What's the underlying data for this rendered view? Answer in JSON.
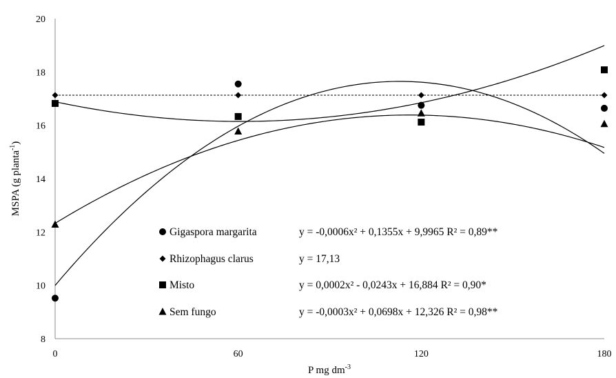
{
  "chart_data": {
    "type": "scatter",
    "xlabel": "P mg dm",
    "xlabel_sup": "-3",
    "ylabel": "MSPA (g planta",
    "ylabel_sup": "-1",
    "ylabel_end": ")",
    "xlim": [
      0,
      180
    ],
    "ylim": [
      8,
      20
    ],
    "xticks": [
      0,
      60,
      120,
      180
    ],
    "yticks": [
      8,
      10,
      12,
      14,
      16,
      18,
      20
    ],
    "grid": false,
    "legend_position": "lower-center",
    "series": [
      {
        "name": "Gigaspora margarita",
        "marker": "circle",
        "x": [
          0,
          60,
          120,
          180
        ],
        "y": [
          9.52,
          17.55,
          16.75,
          16.64
        ],
        "fit": "quadratic",
        "coef": [
          9.9965,
          0.1355,
          -0.0006
        ],
        "equation": "y = -0,0006x² + 0,1355x + 9,9965 R² = 0,89**"
      },
      {
        "name": "Rhizophagus clarus",
        "marker": "diamond",
        "x": [
          0,
          60,
          120,
          180
        ],
        "y": [
          17.13,
          17.13,
          17.13,
          17.13
        ],
        "fit": "constant",
        "coef": [
          17.13
        ],
        "line_style": "dashed",
        "equation": "y = 17,13"
      },
      {
        "name": "Misto",
        "marker": "square",
        "x": [
          0,
          60,
          120,
          180
        ],
        "y": [
          16.82,
          16.33,
          16.12,
          18.08
        ],
        "fit": "quadratic",
        "coef": [
          16.884,
          -0.0243,
          0.0002
        ],
        "equation": "y = 0,0002x² - 0,0243x + 16,884 R² = 0,90*"
      },
      {
        "name": "Sem fungo",
        "marker": "triangle",
        "x": [
          0,
          60,
          120,
          180
        ],
        "y": [
          12.28,
          15.77,
          16.45,
          16.05
        ],
        "fit": "quadratic",
        "coef": [
          12.326,
          0.0698,
          -0.0003
        ],
        "equation": "y = -0,0003x² + 0,0698x + 12,326 R² = 0,98**"
      }
    ]
  }
}
